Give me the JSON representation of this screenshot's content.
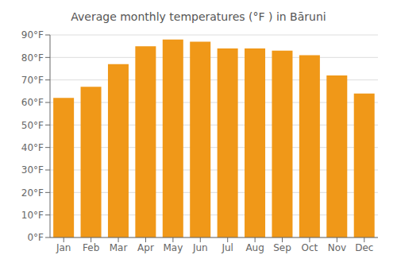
{
  "chart_data": {
    "type": "bar",
    "title": "Average monthly temperatures (°F ) in Bāruni",
    "categories": [
      "Jan",
      "Feb",
      "Mar",
      "Apr",
      "May",
      "Jun",
      "Jul",
      "Aug",
      "Sep",
      "Oct",
      "Nov",
      "Dec"
    ],
    "values": [
      62,
      67,
      77,
      85,
      88,
      87,
      84,
      84,
      83,
      81,
      72,
      64
    ],
    "color": "#F09818",
    "ylim": [
      0,
      90
    ],
    "yticks": [
      {
        "value": 0,
        "label": "0°F"
      },
      {
        "value": 10,
        "label": "10°F"
      },
      {
        "value": 20,
        "label": "20°F"
      },
      {
        "value": 30,
        "label": "30°F"
      },
      {
        "value": 40,
        "label": "40°F"
      },
      {
        "value": 50,
        "label": "50°F"
      },
      {
        "value": 60,
        "label": "60°F"
      },
      {
        "value": 70,
        "label": "70°F"
      },
      {
        "value": 80,
        "label": "80°F"
      },
      {
        "value": 90,
        "label": "90°F"
      }
    ],
    "grid": true
  }
}
